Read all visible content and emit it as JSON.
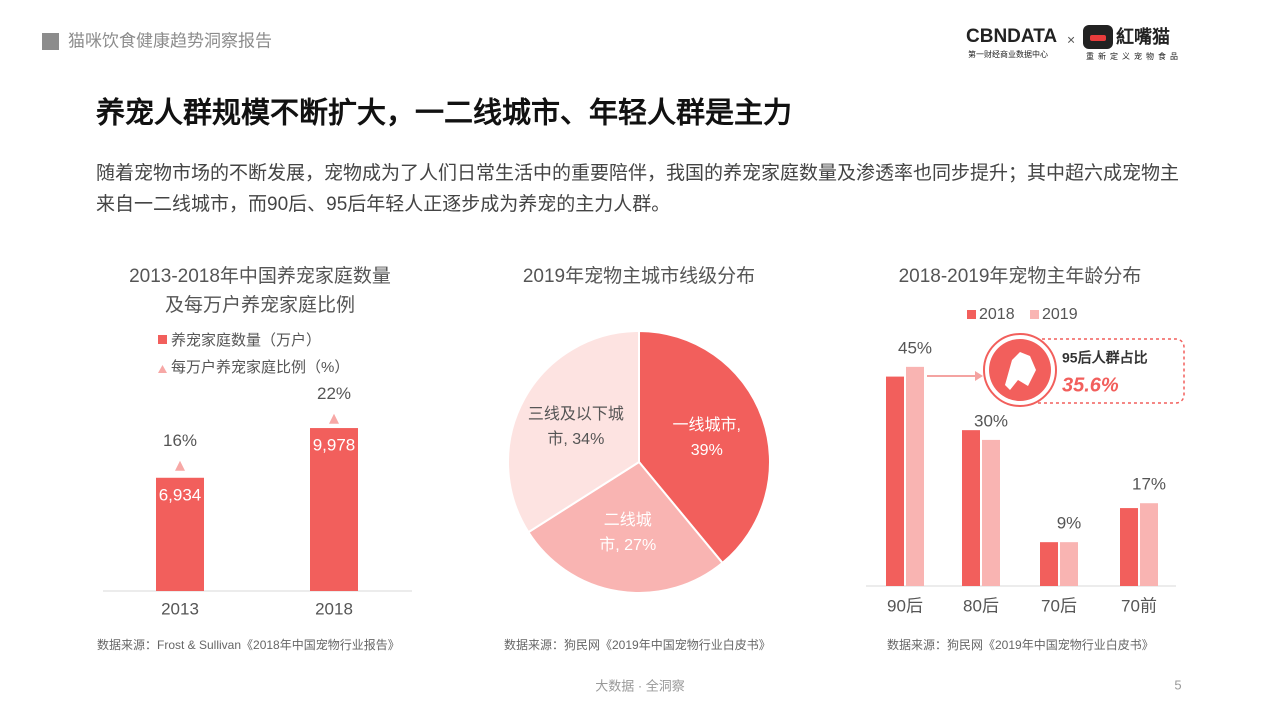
{
  "header": {
    "section": "猫咪饮食健康趋势洞察报告",
    "logo_left": "CBNDATA",
    "logo_left_sub": "第一财经商业数据中心",
    "logo_x": "×",
    "logo_right": "紅嘴猫",
    "logo_right_sub": "重新定义宠物食品"
  },
  "title": "养宠人群规模不断扩大，一二线城市、年轻人群是主力",
  "intro": "随着宠物市场的不断发展，宠物成为了人们日常生活中的重要陪伴，我国的养宠家庭数量及渗透率也同步提升；其中超六成宠物主来自一二线城市，而90后、95后年轻人正逐步成为养宠的主力人群。",
  "chart_data": [
    {
      "type": "bar",
      "title": "2013-2018年中国养宠家庭数量及每万户养宠家庭比例",
      "categories": [
        "2013",
        "2018"
      ],
      "series": [
        {
          "name": "养宠家庭数量（万户）",
          "color": "#f25f5c",
          "values": [
            6934,
            9978
          ],
          "value_labels": [
            "6,934",
            "9,978"
          ]
        },
        {
          "name": "每万户养宠家庭比例（%）",
          "color": "#f7a8a6",
          "marker": "triangle",
          "values": [
            16,
            22
          ],
          "value_labels": [
            "16%",
            "22%"
          ]
        }
      ],
      "source": "数据来源：Frost & Sullivan《2018年中国宠物行业报告》"
    },
    {
      "type": "pie",
      "title": "2019年宠物主城市线级分布",
      "categories": [
        "一线城市",
        "二线城市",
        "三线及以下城市"
      ],
      "values": [
        39,
        27,
        34
      ],
      "labels": [
        "一线城市, 39%",
        "二线城市, 27%",
        "三线及以下城市, 34%"
      ],
      "colors": [
        "#f25f5c",
        "#f9b4b2",
        "#fde3e1"
      ],
      "source": "数据来源：狗民网《2019年中国宠物行业白皮书》"
    },
    {
      "type": "bar",
      "title": "2018-2019年宠物主年龄分布",
      "categories": [
        "90后",
        "80后",
        "70后",
        "70前"
      ],
      "series": [
        {
          "name": "2018",
          "color": "#f25f5c",
          "values": [
            43,
            32,
            9,
            16
          ]
        },
        {
          "name": "2019",
          "color": "#f9b4b2",
          "values": [
            45,
            30,
            9,
            17
          ],
          "value_labels": [
            "45%",
            "30%",
            "9%",
            "17%"
          ]
        }
      ],
      "annotation": {
        "text": "95后人群占比",
        "value": "35.6%"
      },
      "source": "数据来源：狗民网《2019年中国宠物行业白皮书》"
    }
  ],
  "footer": {
    "slogan": "大数据 · 全洞察",
    "page": "5"
  }
}
